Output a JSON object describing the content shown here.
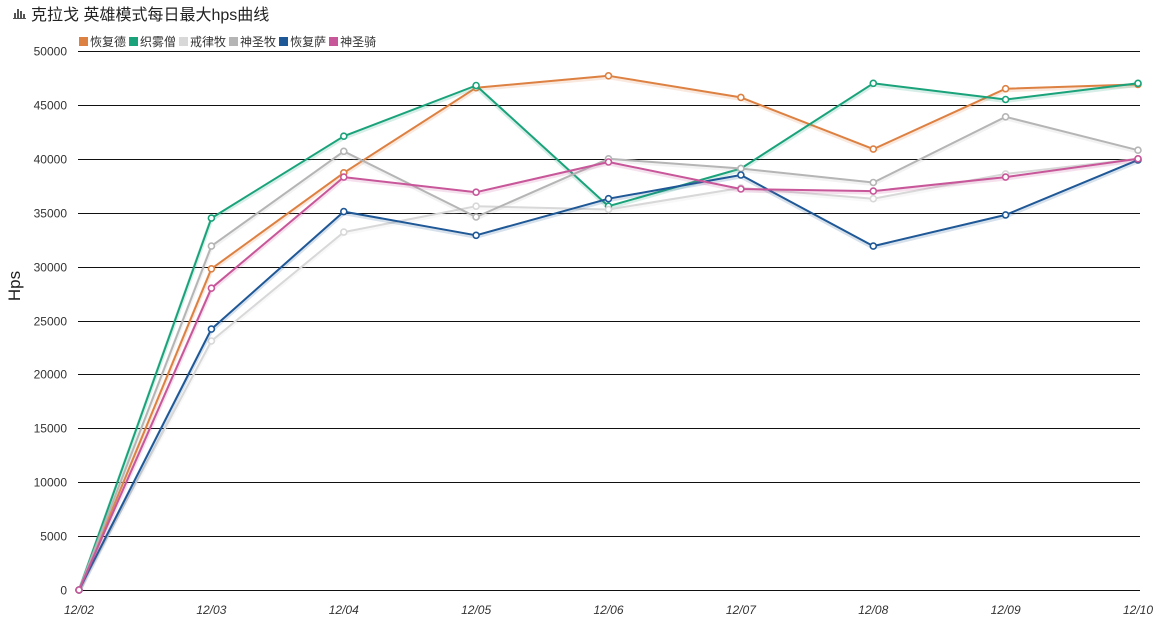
{
  "header": {
    "icon": "bar-chart-icon"
  },
  "chart_data": {
    "type": "line",
    "title": "克拉戈 英雄模式每日最大hps曲线",
    "ylabel": "Hps",
    "categories": [
      "12/02",
      "12/03",
      "12/04",
      "12/05",
      "12/06",
      "12/07",
      "12/08",
      "12/09",
      "12/10"
    ],
    "ylim": [
      0,
      50000
    ],
    "yticks": [
      0,
      5000,
      10000,
      15000,
      20000,
      25000,
      30000,
      35000,
      40000,
      45000,
      50000
    ],
    "grid": true,
    "legend": "top-left",
    "series": [
      {
        "name": "恢复德",
        "color": "#dd8142",
        "values": [
          0,
          29800,
          38700,
          46600,
          47700,
          45700,
          40900,
          46500,
          46900
        ]
      },
      {
        "name": "织雾僧",
        "color": "#1aa37a",
        "values": [
          0,
          34500,
          42100,
          46800,
          35600,
          39100,
          47000,
          45500,
          47000
        ]
      },
      {
        "name": "戒律牧",
        "color": "#d8d8d8",
        "values": [
          0,
          23100,
          33200,
          35600,
          35300,
          37300,
          36300,
          38600,
          40000
        ]
      },
      {
        "name": "神圣牧",
        "color": "#b5b5b5",
        "values": [
          0,
          31900,
          40700,
          34600,
          40000,
          39100,
          37800,
          43900,
          40800
        ]
      },
      {
        "name": "恢复萨",
        "color": "#1f5896",
        "values": [
          0,
          24200,
          35100,
          32900,
          36300,
          38500,
          31900,
          34800,
          39900
        ]
      },
      {
        "name": "神圣骑",
        "color": "#c8579a",
        "values": [
          0,
          28000,
          38300,
          36900,
          39700,
          37200,
          37000,
          38300,
          40000
        ]
      }
    ]
  }
}
